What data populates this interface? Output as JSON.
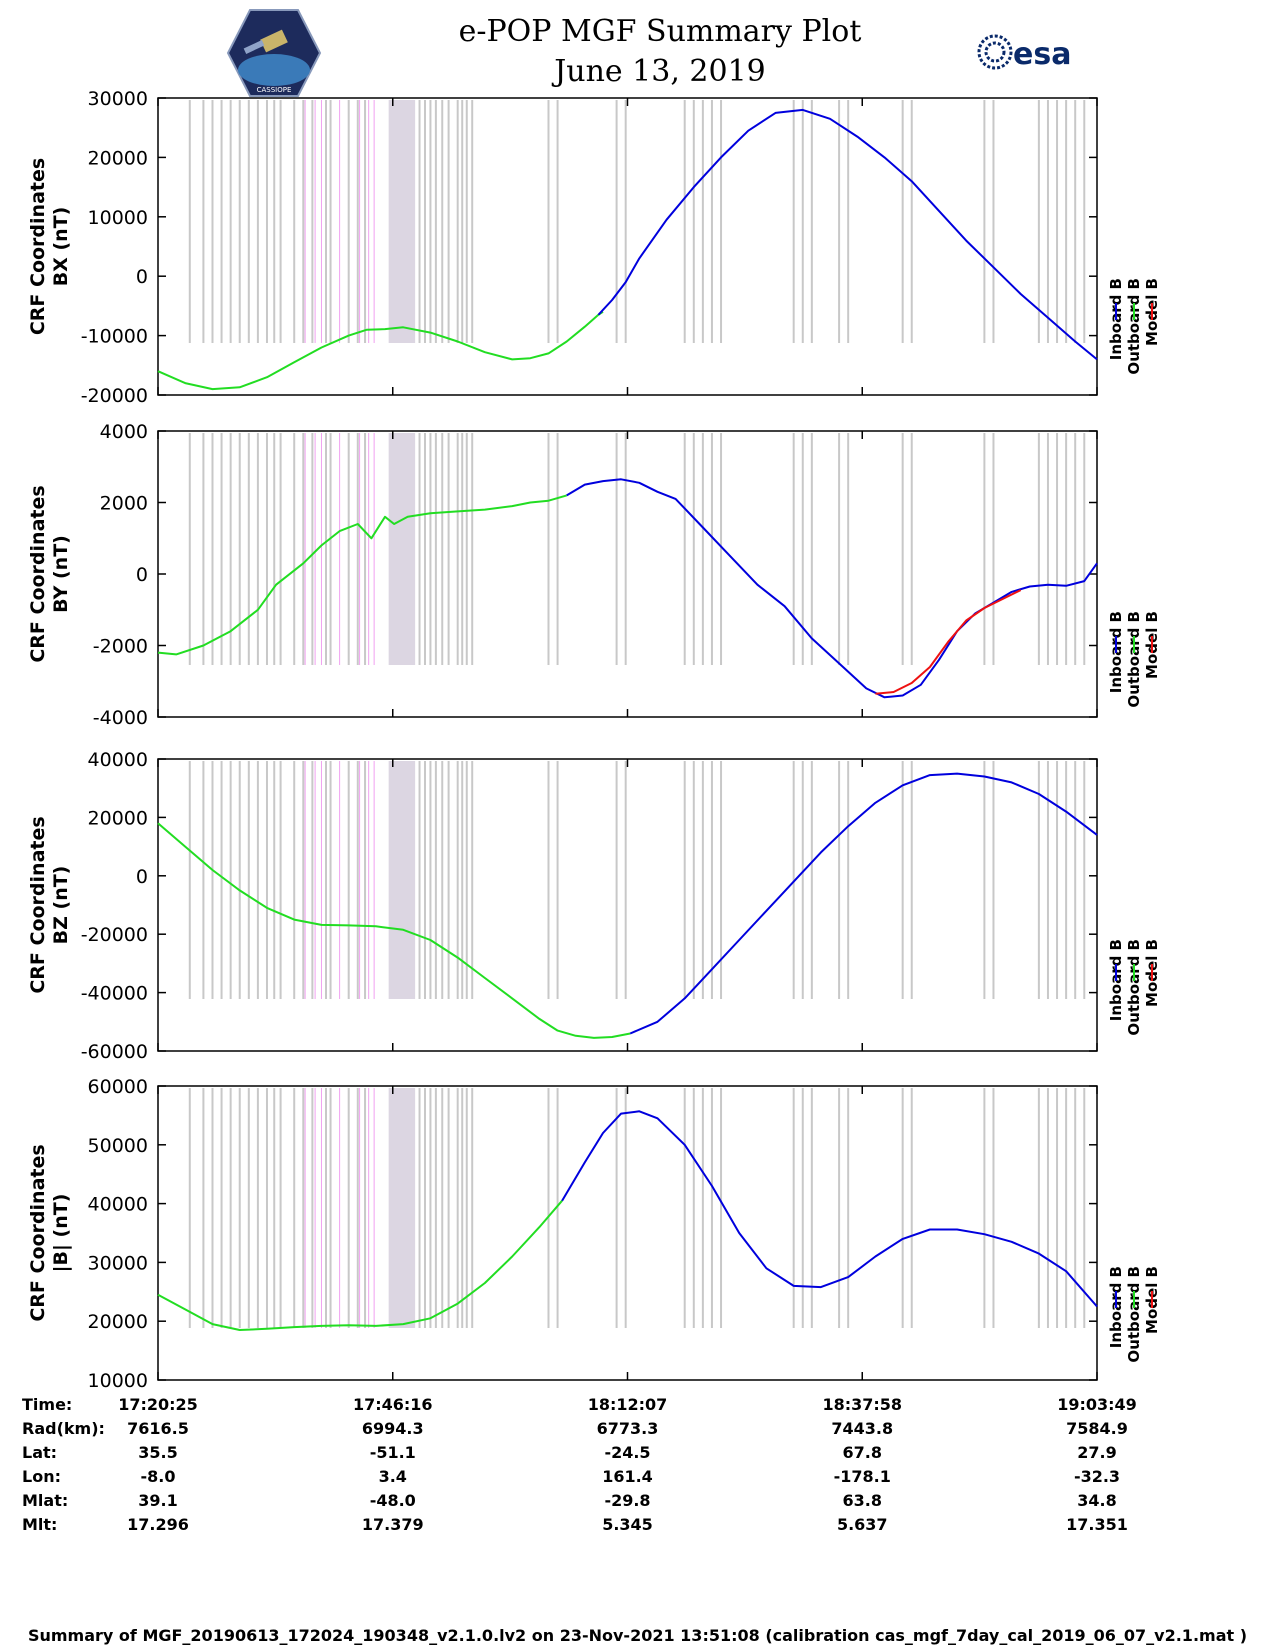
{
  "header": {
    "title": "e-POP MGF Summary Plot",
    "date": "June 13, 2019",
    "logo_left_text": "CASSIOPE",
    "logo_right_text": "esa"
  },
  "legend": [
    "Inboard B",
    "Outboard B",
    "Model B"
  ],
  "colors": {
    "inboard": "#0000dd",
    "outboard": "#22dd22",
    "model": "#ee1111",
    "gap_gray": "#c8c8c8",
    "gap_magenta": "#f0a0f0"
  },
  "chart_data": {
    "type": "line",
    "x_range_minutes": [
      0,
      103.4
    ],
    "x_tick_minutes": [
      0,
      25.85,
      51.7,
      77.55,
      103.4
    ],
    "panels": [
      {
        "name": "BX",
        "ylabel": [
          "CRF Coordinates",
          "BX (nT)"
        ],
        "ylim": [
          -20000,
          30000
        ],
        "yticks": [
          -20000,
          -10000,
          0,
          10000,
          20000,
          30000
        ],
        "series": [
          {
            "name": "Outboard B",
            "x": [
              0,
              3,
              6,
              9,
              12,
              15,
              18,
              21,
              23,
              25,
              27,
              30,
              33,
              36,
              39,
              41,
              43,
              45,
              47,
              48.5,
              49
            ],
            "y": [
              -16000,
              -18000,
              -19000,
              -18700,
              -17000,
              -14500,
              -12000,
              -10000,
              -9000,
              -8900,
              -8600,
              -9500,
              -11000,
              -12800,
              -14000,
              -13800,
              -13000,
              -11000,
              -8500,
              -6500,
              -6000
            ]
          },
          {
            "name": "Inboard B",
            "x": [
              48.5,
              50,
              51.5,
              53,
              56,
              59,
              62,
              65,
              68,
              71,
              74,
              77,
              80,
              83,
              86,
              89,
              92,
              95,
              98,
              101,
              103.4
            ],
            "y": [
              -6500,
              -4000,
              -1000,
              3000,
              9500,
              15000,
              20000,
              24500,
              27500,
              28000,
              26500,
              23500,
              20000,
              16000,
              11000,
              6000,
              1500,
              -3000,
              -7000,
              -11000,
              -14000
            ]
          }
        ]
      },
      {
        "name": "BY",
        "ylabel": [
          "CRF Coordinates",
          "BY (nT)"
        ],
        "ylim": [
          -4000,
          4000
        ],
        "yticks": [
          -4000,
          -2000,
          0,
          2000,
          4000
        ],
        "series": [
          {
            "name": "Outboard B",
            "x": [
              0,
              2,
              5,
              8,
              11,
              13,
              16,
              18,
              20,
              22,
              23.5,
              25,
              26,
              27.5,
              30,
              33,
              36,
              39,
              41,
              43,
              45
            ],
            "y": [
              -2200,
              -2250,
              -2000,
              -1600,
              -1000,
              -300,
              300,
              800,
              1200,
              1400,
              1000,
              1600,
              1400,
              1600,
              1700,
              1750,
              1800,
              1900,
              2000,
              2050,
              2200
            ]
          },
          {
            "name": "Inboard B",
            "x": [
              45,
              47,
              49,
              51,
              53,
              55,
              57,
              60,
              63,
              66,
              69,
              72,
              75,
              78,
              80,
              82,
              84,
              86,
              88,
              90,
              92,
              94,
              96,
              98,
              100,
              102,
              103.4
            ],
            "y": [
              2200,
              2500,
              2600,
              2650,
              2550,
              2300,
              2100,
              1300,
              500,
              -300,
              -900,
              -1800,
              -2500,
              -3200,
              -3450,
              -3400,
              -3100,
              -2400,
              -1600,
              -1100,
              -800,
              -500,
              -350,
              -300,
              -330,
              -200,
              300
            ]
          },
          {
            "name": "Model B",
            "x": [
              79,
              81,
              83,
              85,
              87,
              89,
              91,
              93,
              95
            ],
            "y": [
              -3350,
              -3300,
              -3050,
              -2600,
              -1900,
              -1300,
              -950,
              -700,
              -450
            ]
          }
        ]
      },
      {
        "name": "BZ",
        "ylabel": [
          "CRF Coordinates",
          "BZ (nT)"
        ],
        "ylim": [
          -60000,
          40000
        ],
        "yticks": [
          -60000,
          -40000,
          -20000,
          0,
          20000,
          40000
        ],
        "series": [
          {
            "name": "Outboard B",
            "x": [
              0,
              3,
              6,
              9,
              12,
              15,
              18,
              21,
              24,
              27,
              30,
              33,
              36,
              39,
              42,
              44,
              46,
              48,
              50,
              52
            ],
            "y": [
              18000,
              10000,
              2000,
              -5000,
              -11000,
              -15000,
              -16800,
              -17000,
              -17300,
              -18500,
              -22000,
              -28000,
              -35000,
              -42000,
              -49000,
              -53000,
              -54800,
              -55500,
              -55200,
              -54000
            ]
          },
          {
            "name": "Inboard B",
            "x": [
              52,
              55,
              58,
              61,
              64,
              67,
              70,
              73,
              76,
              79,
              82,
              85,
              88,
              91,
              94,
              97,
              100,
              103.4
            ],
            "y": [
              -54000,
              -50000,
              -42000,
              -32000,
              -22000,
              -12000,
              -2000,
              8000,
              17000,
              25000,
              31000,
              34500,
              35000,
              34000,
              32000,
              28000,
              22000,
              14000
            ]
          }
        ]
      },
      {
        "name": "|B|",
        "ylabel": [
          "CRF Coordinates",
          "|B| (nT)"
        ],
        "ylim": [
          10000,
          60000
        ],
        "yticks": [
          10000,
          20000,
          30000,
          40000,
          50000,
          60000
        ],
        "series": [
          {
            "name": "Outboard B",
            "x": [
              0,
              3,
              6,
              9,
              12,
              15,
              18,
              21,
              24,
              27,
              30,
              33,
              36,
              39,
              42,
              44.5
            ],
            "y": [
              24500,
              22000,
              19500,
              18500,
              18700,
              19000,
              19200,
              19300,
              19200,
              19500,
              20500,
              23000,
              26500,
              31000,
              36000,
              40500
            ]
          },
          {
            "name": "Inboard B",
            "x": [
              44.5,
              47,
              49,
              51,
              53,
              55,
              58,
              61,
              64,
              67,
              70,
              73,
              76,
              79,
              82,
              85,
              88,
              91,
              94,
              97,
              100,
              103.4
            ],
            "y": [
              40500,
              47000,
              52000,
              55300,
              55700,
              54500,
              50000,
              43000,
              35000,
              29000,
              26000,
              25800,
              27500,
              31000,
              34000,
              35600,
              35600,
              34800,
              33500,
              31500,
              28500,
              22500
            ]
          }
        ]
      }
    ]
  },
  "orbit": {
    "labels": [
      "Time:",
      "Rad(km):",
      "Lat:",
      "Lon:",
      "Mlat:",
      "Mlt:"
    ],
    "columns": [
      [
        "17:20:25",
        "7616.5",
        "35.5",
        "-8.0",
        "39.1",
        "17.296"
      ],
      [
        "17:46:16",
        "6994.3",
        "-51.1",
        "3.4",
        "-48.0",
        "17.379"
      ],
      [
        "18:12:07",
        "6773.3",
        "-24.5",
        "161.4",
        "-29.8",
        "5.345"
      ],
      [
        "18:37:58",
        "7443.8",
        "67.8",
        "-178.1",
        "63.8",
        "5.637"
      ],
      [
        "19:03:49",
        "7584.9",
        "27.9",
        "-32.3",
        "34.8",
        "17.351"
      ]
    ]
  },
  "footer": "Summary of MGF_20190613_172024_190348_v2.1.0.lv2 on 23-Nov-2021 13:51:08 (calibration cas_mgf_7day_cal_2019_06_07_v2.1.mat )"
}
